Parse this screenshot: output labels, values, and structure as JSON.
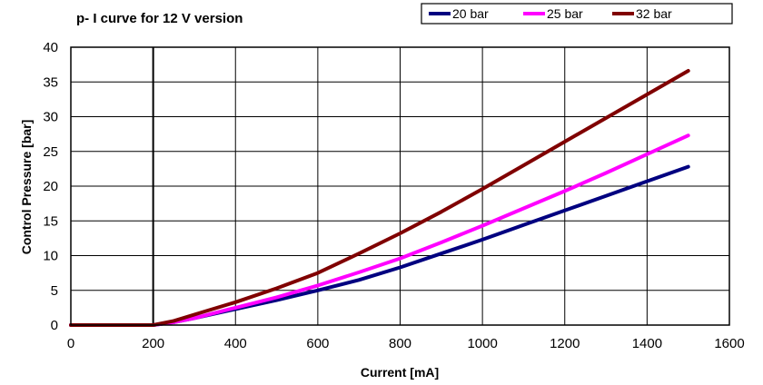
{
  "chart_data": {
    "type": "line",
    "title": "p- I curve for 12 V version",
    "xlabel": "Current [mA]",
    "ylabel": "Control  Pressure [bar]",
    "xlim": [
      0,
      1600
    ],
    "ylim": [
      0,
      40
    ],
    "x_ticks": [
      "0",
      "200",
      "400",
      "600",
      "800",
      "1000",
      "1200",
      "1400",
      "1600"
    ],
    "y_ticks": [
      "0",
      "5",
      "10",
      "15",
      "20",
      "25",
      "30",
      "35",
      "40"
    ],
    "grid": true,
    "legend_position": "top-right",
    "x": [
      0,
      200,
      250,
      300,
      400,
      500,
      600,
      700,
      800,
      900,
      1000,
      1100,
      1200,
      1300,
      1400,
      1500
    ],
    "series": [
      {
        "name": "20 bar",
        "color": "#000080",
        "values": [
          0,
          0,
          0.4,
          1.0,
          2.3,
          3.6,
          5.0,
          6.5,
          8.3,
          10.3,
          12.3,
          14.4,
          16.5,
          18.6,
          20.7,
          22.8
        ]
      },
      {
        "name": "25 bar",
        "color": "#FF00FF",
        "values": [
          0,
          0,
          0.4,
          1.0,
          2.5,
          4.0,
          5.7,
          7.6,
          9.6,
          11.9,
          14.3,
          16.8,
          19.3,
          21.9,
          24.6,
          27.3
        ]
      },
      {
        "name": "32 bar",
        "color": "#800000",
        "values": [
          0,
          0,
          0.6,
          1.5,
          3.3,
          5.3,
          7.5,
          10.3,
          13.2,
          16.3,
          19.6,
          23.0,
          26.4,
          29.8,
          33.2,
          36.6
        ]
      }
    ]
  }
}
